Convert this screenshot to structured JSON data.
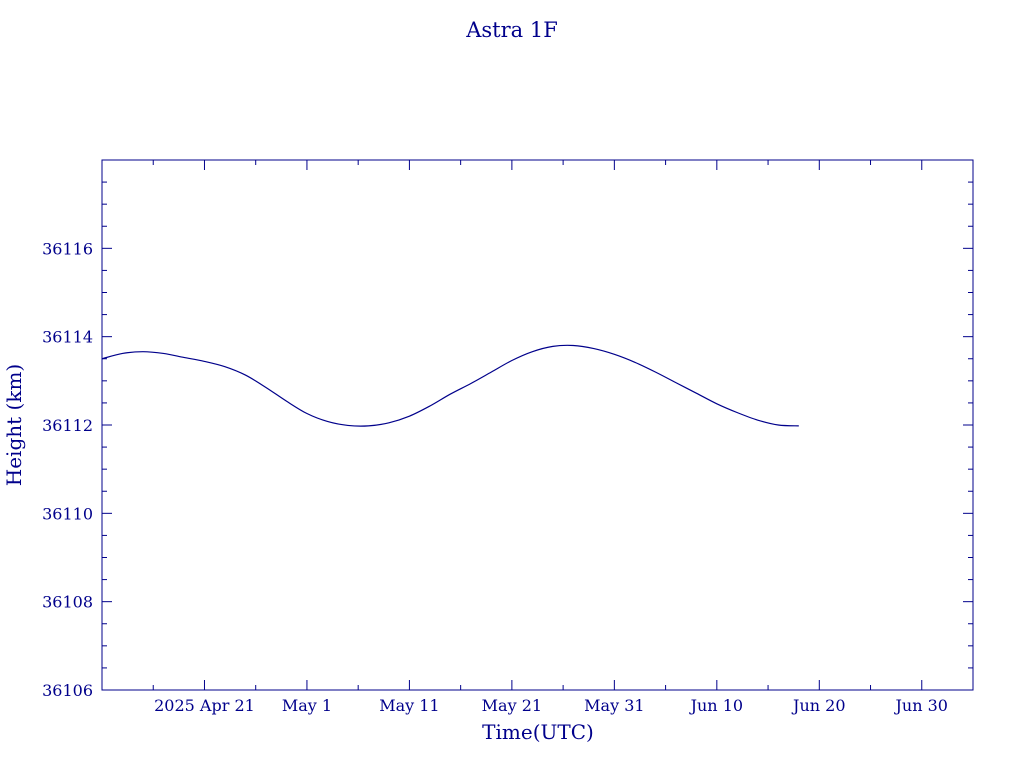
{
  "chart_data": {
    "type": "line",
    "title": "Astra 1F",
    "xlabel": "Time(UTC)",
    "ylabel": "Height (km)",
    "line_color": "#00008b",
    "axis_color": "#00008b",
    "grid": false,
    "xlim": [
      "2025-04-11",
      "2025-07-05"
    ],
    "ylim": [
      36106,
      36118
    ],
    "x_ticks": [
      {
        "date": "2025-04-21",
        "label": "2025 Apr 21"
      },
      {
        "date": "2025-05-01",
        "label": "May  1"
      },
      {
        "date": "2025-05-11",
        "label": "May 11"
      },
      {
        "date": "2025-05-21",
        "label": "May 21"
      },
      {
        "date": "2025-05-31",
        "label": "May 31"
      },
      {
        "date": "2025-06-10",
        "label": "Jun 10"
      },
      {
        "date": "2025-06-20",
        "label": "Jun 20"
      },
      {
        "date": "2025-06-30",
        "label": "Jun 30"
      }
    ],
    "y_ticks": [
      36106,
      36108,
      36110,
      36112,
      36114,
      36116
    ],
    "series": [
      {
        "x": [
          "2025-04-11",
          "2025-04-13",
          "2025-04-15",
          "2025-04-17",
          "2025-04-19",
          "2025-04-21",
          "2025-04-23",
          "2025-04-25",
          "2025-04-27",
          "2025-04-29",
          "2025-05-01",
          "2025-05-03",
          "2025-05-05",
          "2025-05-07",
          "2025-05-09",
          "2025-05-11",
          "2025-05-13",
          "2025-05-15",
          "2025-05-17",
          "2025-05-19",
          "2025-05-21",
          "2025-05-23",
          "2025-05-25",
          "2025-05-27",
          "2025-05-29",
          "2025-05-31",
          "2025-06-02",
          "2025-06-04",
          "2025-06-06",
          "2025-06-08",
          "2025-06-10",
          "2025-06-12",
          "2025-06-14",
          "2025-06-16",
          "2025-06-18"
        ],
        "y": [
          36113.5,
          36113.62,
          36113.66,
          36113.62,
          36113.53,
          36113.44,
          36113.32,
          36113.13,
          36112.85,
          36112.54,
          36112.26,
          36112.08,
          36111.99,
          36111.98,
          36112.05,
          36112.2,
          36112.43,
          36112.7,
          36112.94,
          36113.2,
          36113.46,
          36113.66,
          36113.78,
          36113.8,
          36113.73,
          36113.6,
          36113.42,
          36113.2,
          36112.96,
          36112.72,
          36112.48,
          36112.28,
          36112.11,
          36112.0,
          36111.98
        ]
      }
    ]
  }
}
